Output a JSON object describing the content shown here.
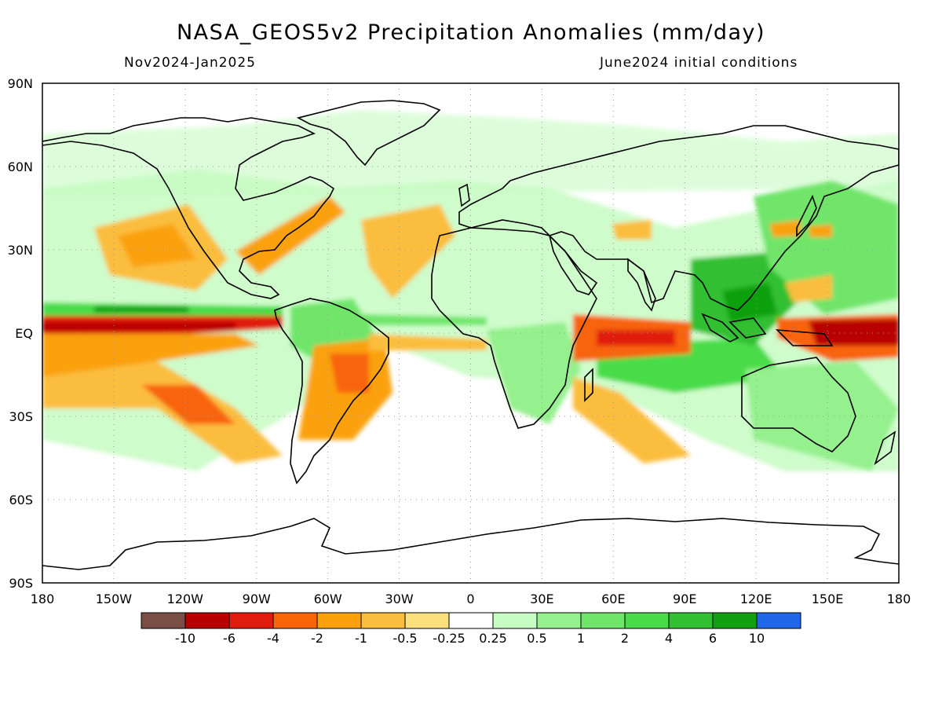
{
  "header": {
    "title": "NASA_GEOS5v2 Precipitation Anomalies (mm/day)",
    "period": "Nov2024-Jan2025",
    "init": "June2024 initial conditions"
  },
  "map": {
    "projection": "equirectangular",
    "lon_range": [
      -180,
      180
    ],
    "lat_range": [
      -90,
      90
    ],
    "x_tick_labels": [
      "180",
      "150W",
      "120W",
      "90W",
      "60W",
      "30W",
      "0",
      "30E",
      "60E",
      "90E",
      "120E",
      "150E",
      "180"
    ],
    "y_tick_labels": [
      "90N",
      "60N",
      "30N",
      "EQ",
      "30S",
      "60S",
      "90S"
    ],
    "grid": "dotted"
  },
  "colorbar": {
    "colors": [
      "#7a4e45",
      "#b80000",
      "#e01c0e",
      "#f86408",
      "#fba10c",
      "#fbbd3d",
      "#fde07e",
      "#ffffff",
      "#c7fcc2",
      "#95f08e",
      "#6fe56a",
      "#48dc48",
      "#32c032",
      "#10a010",
      "#1f66e8"
    ],
    "labels": [
      "-10",
      "-6",
      "-4",
      "-2",
      "-1",
      "-0.5",
      "-0.25",
      "0.25",
      "0.5",
      "1",
      "2",
      "4",
      "6",
      "10"
    ]
  },
  "anomaly_regions": [
    {
      "name": "central-pacific-equatorial-dry",
      "color": "#e01c0e"
    },
    {
      "name": "western-pacific-dry",
      "color": "#b80000"
    },
    {
      "name": "indian-ocean-dry",
      "color": "#f86408"
    },
    {
      "name": "itcz-pacific-wet",
      "color": "#10a010"
    },
    {
      "name": "maritime-continent-wet",
      "color": "#32c032"
    }
  ]
}
